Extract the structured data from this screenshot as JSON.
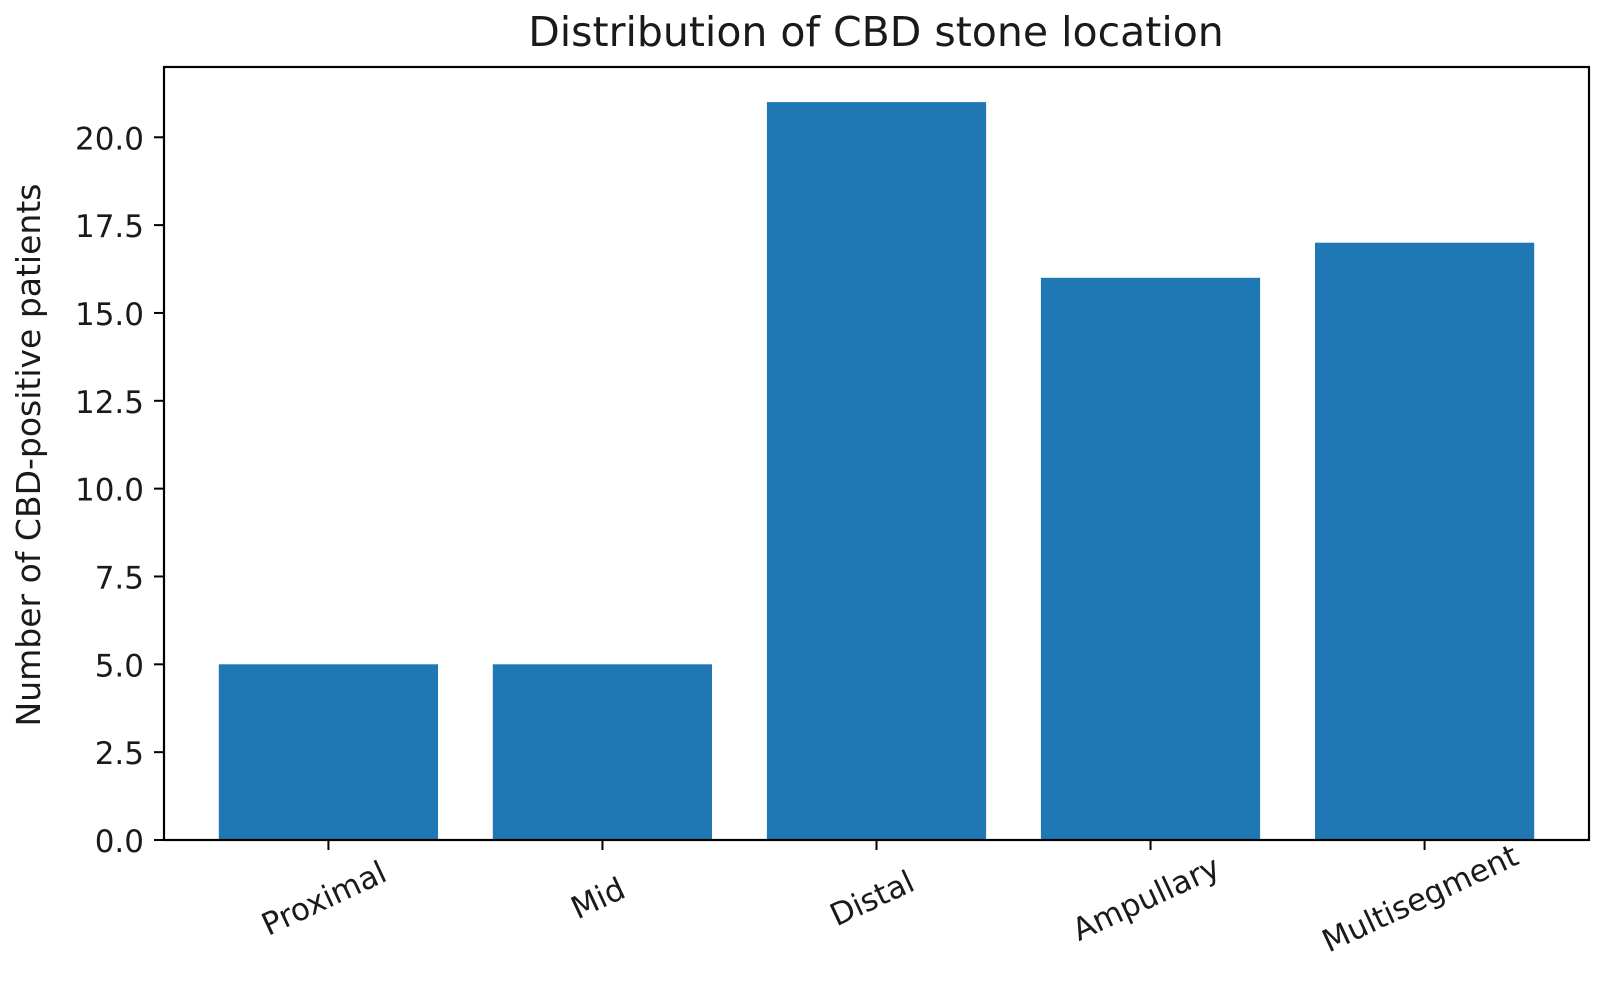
{
  "chart_data": {
    "type": "bar",
    "title": "Distribution of CBD stone location",
    "xlabel": "",
    "ylabel": "Number of CBD-positive patients",
    "categories": [
      "Proximal",
      "Mid",
      "Distal",
      "Ampullary",
      "Multisegment"
    ],
    "values": [
      5,
      5,
      21,
      16,
      17
    ],
    "ylim": [
      0,
      22
    ],
    "yticks": [
      "0.0",
      "2.5",
      "5.0",
      "7.5",
      "10.0",
      "12.5",
      "15.0",
      "17.5",
      "20.0"
    ],
    "grid": false,
    "bar_color": "#1f77b4"
  }
}
